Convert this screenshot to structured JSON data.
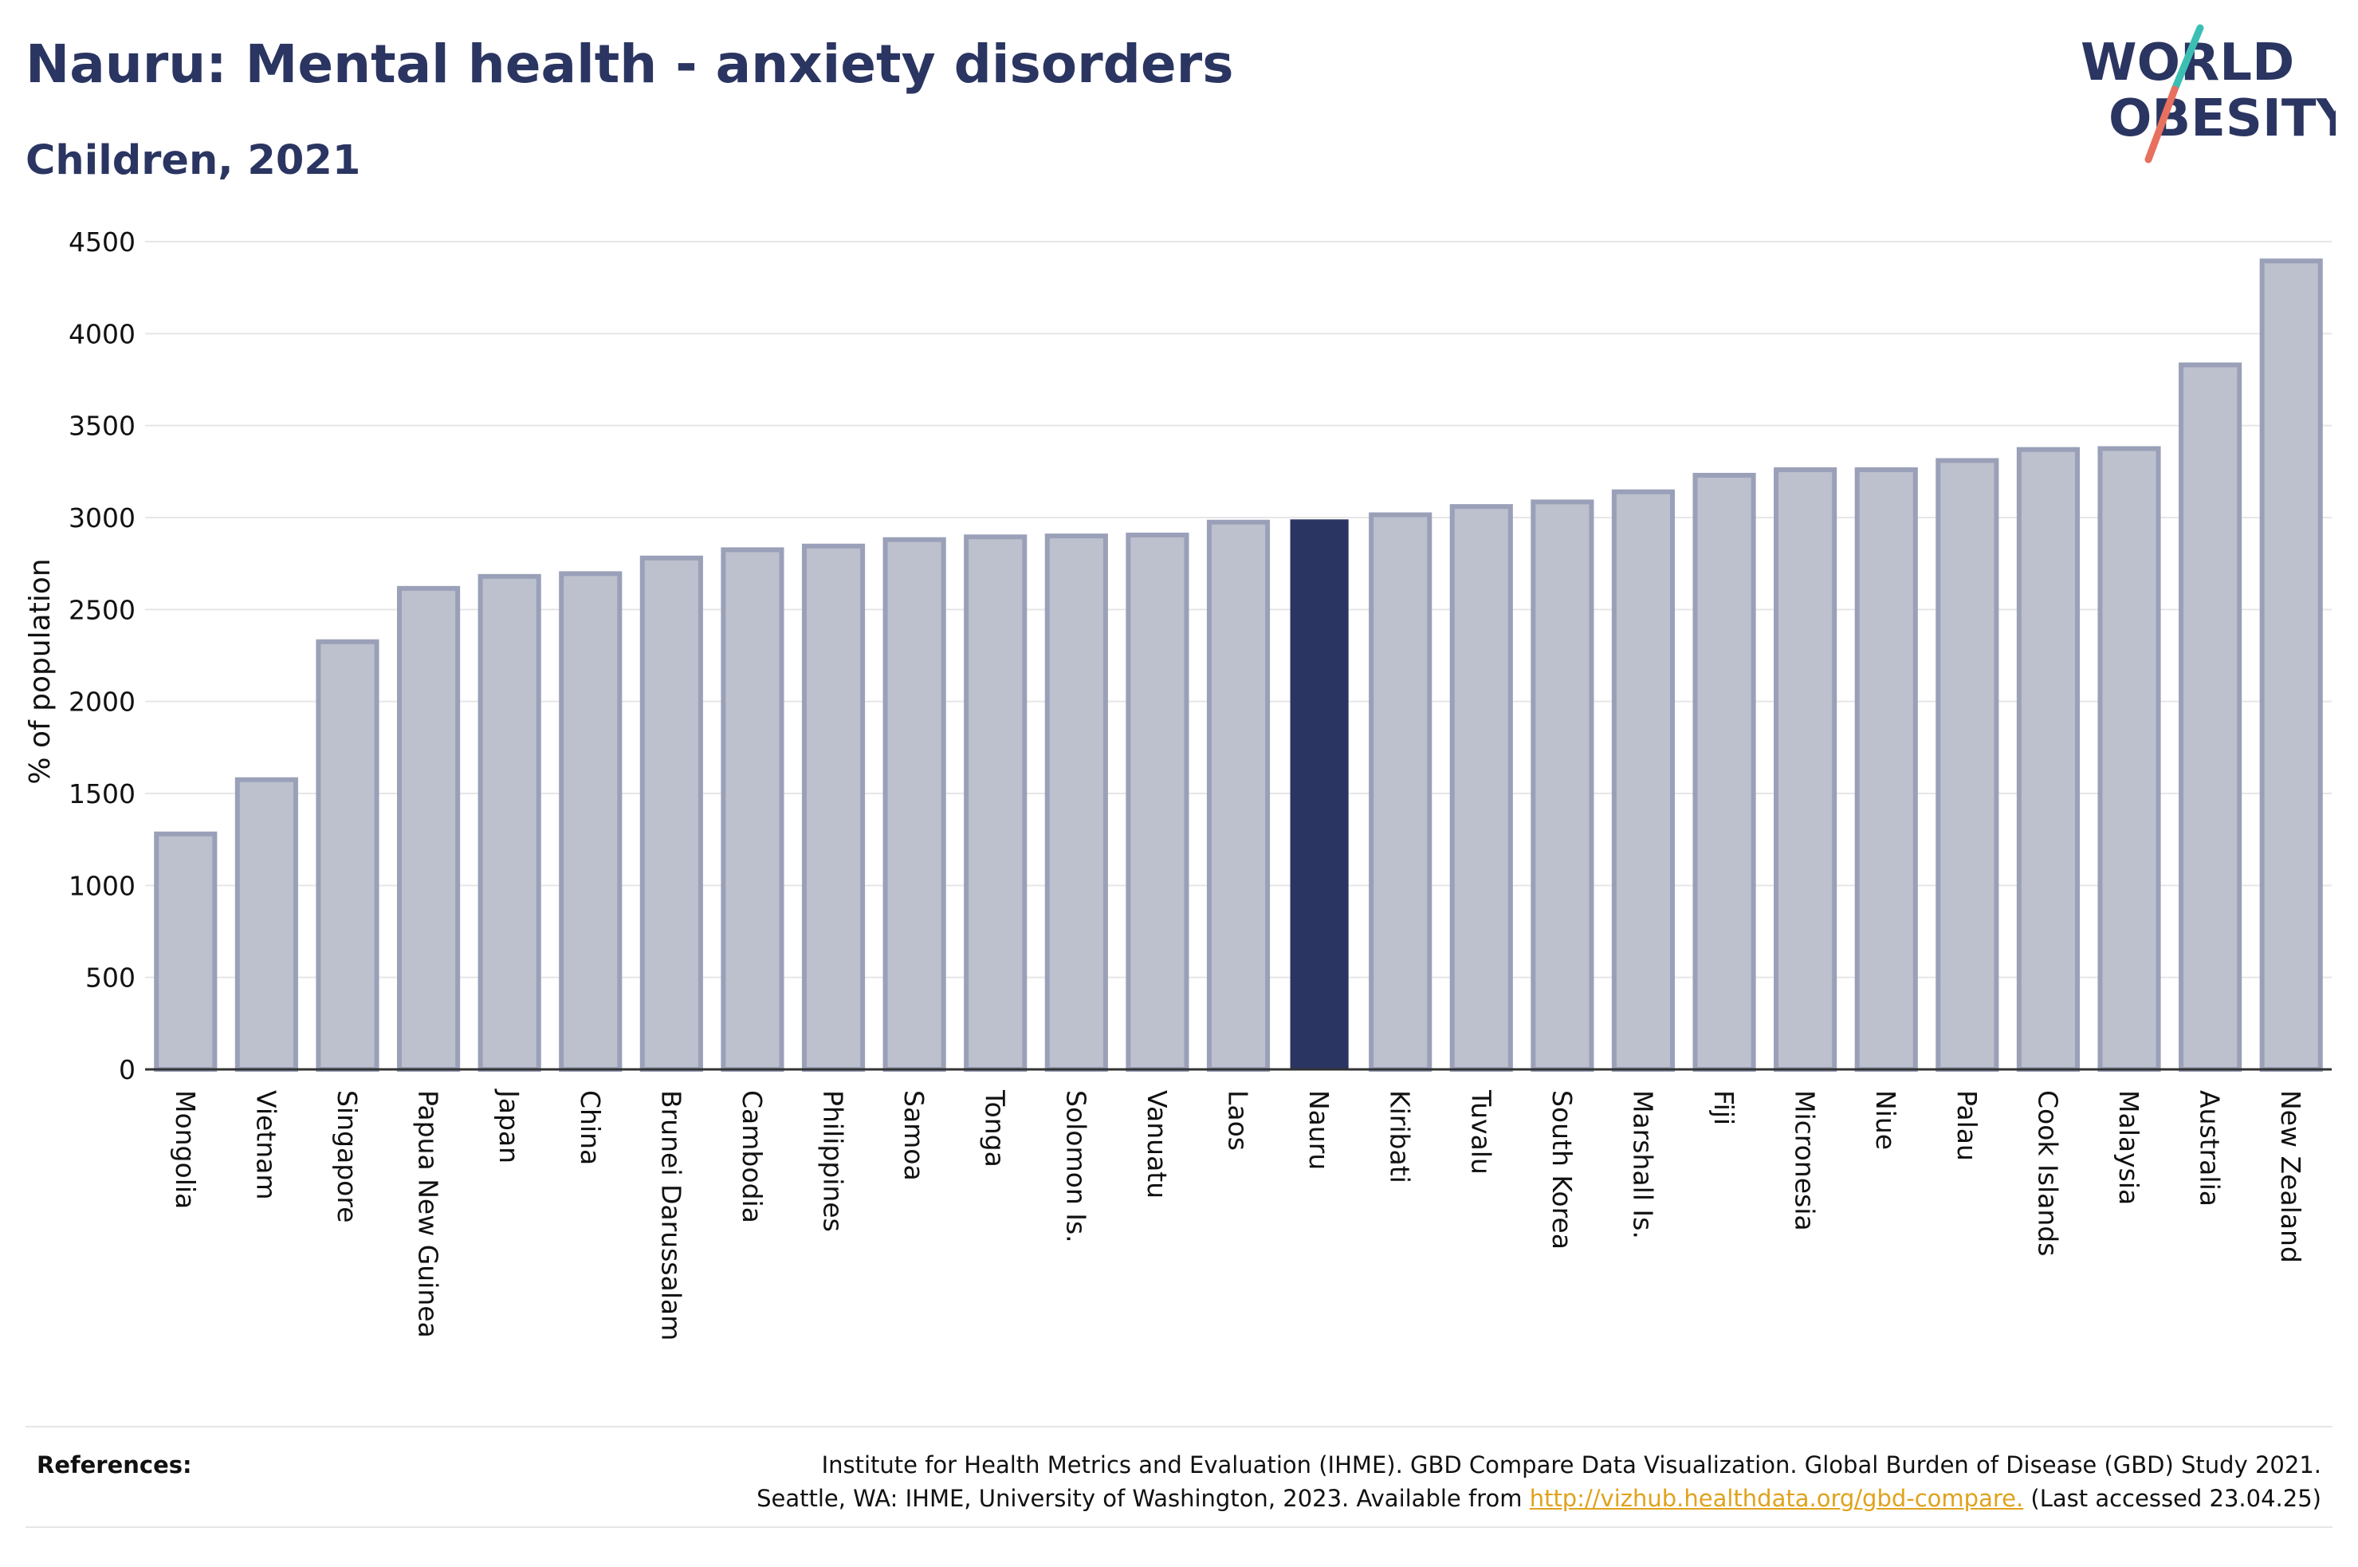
{
  "header": {
    "title": "Nauru: Mental health - anxiety disorders",
    "subtitle": "Children, 2021"
  },
  "logo": {
    "line1": "WORLD",
    "line2": "OBESITY",
    "colors": {
      "text": "#2b3561",
      "slash_top": "#3bbfb4",
      "slash_bottom": "#e8705f"
    }
  },
  "colors": {
    "bar_fill": "#bdc0cd",
    "bar_stroke": "#9aa0b8",
    "highlight": "#2b3561",
    "grid": "#e6e6e6",
    "axis": "#333333"
  },
  "chart_data": {
    "type": "bar",
    "title": "Nauru: Mental health - anxiety disorders",
    "subtitle": "Children, 2021",
    "ylabel": "% of population",
    "ylim": [
      0,
      4500
    ],
    "yticks": [
      0,
      500,
      1000,
      1500,
      2000,
      2500,
      3000,
      3500,
      4000,
      4500
    ],
    "grid": true,
    "highlight": "Nauru",
    "categories": [
      "Mongolia",
      "Vietnam",
      "Singapore",
      "Papua New Guinea",
      "Japan",
      "China",
      "Brunei Darussalam",
      "Cambodia",
      "Philippines",
      "Samoa",
      "Tonga",
      "Solomon Is.",
      "Vanuatu",
      "Laos",
      "Nauru",
      "Kiribati",
      "Tuvalu",
      "South Korea",
      "Marshall Is.",
      "Fiji",
      "Micronesia",
      "Niue",
      "Palau",
      "Cook Islands",
      "Malaysia",
      "Australia",
      "New Zealand"
    ],
    "values": [
      1280,
      1575,
      2325,
      2615,
      2680,
      2695,
      2780,
      2825,
      2845,
      2880,
      2895,
      2900,
      2905,
      2975,
      2990,
      3015,
      3060,
      3085,
      3140,
      3230,
      3260,
      3260,
      3310,
      3370,
      3375,
      3830,
      4395
    ]
  },
  "references": {
    "label": "References:",
    "line1": "Institute for Health Metrics and Evaluation (IHME). GBD Compare Data Visualization. Global Burden of Disease (GBD) Study 2021.",
    "line2_before": "Seattle, WA: IHME, University of Washington, 2023. Available from ",
    "link": "http://vizhub.healthdata.org/gbd-compare.",
    "line2_after": " (Last accessed 23.04.25)"
  }
}
